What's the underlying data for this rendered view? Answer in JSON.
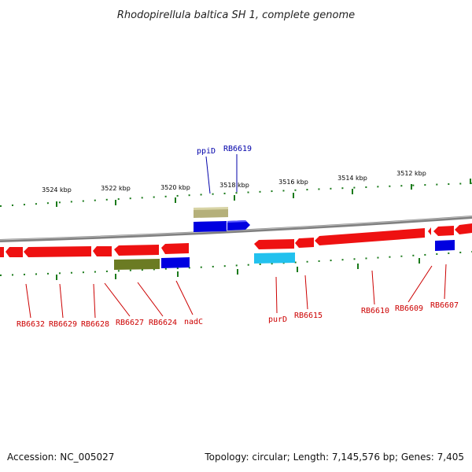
{
  "title": "Rhodopirellula baltica SH 1, complete genome",
  "footer": {
    "accession": "Accession: NC_005027",
    "summary": "Topology: circular; Length: 7,145,576 bp; Genes: 7,405"
  },
  "colors": {
    "forward_label": "#0000aa",
    "reverse_label": "#cc0000",
    "backbone": "#808080",
    "ticks": "#1a7a1a"
  },
  "tick_labels": [
    "3524 kbp",
    "3522 kbp",
    "3520 kbp",
    "3518 kbp",
    "3516 kbp",
    "3514 kbp",
    "3512 kbp"
  ],
  "forward_labels": [
    "ppiD",
    "RB6619"
  ],
  "reverse_labels": [
    "RB6632",
    "RB6629",
    "RB6628",
    "RB6627",
    "RB6624",
    "nadC",
    "purD",
    "RB6615",
    "RB6610",
    "RB6609",
    "RB6607"
  ]
}
